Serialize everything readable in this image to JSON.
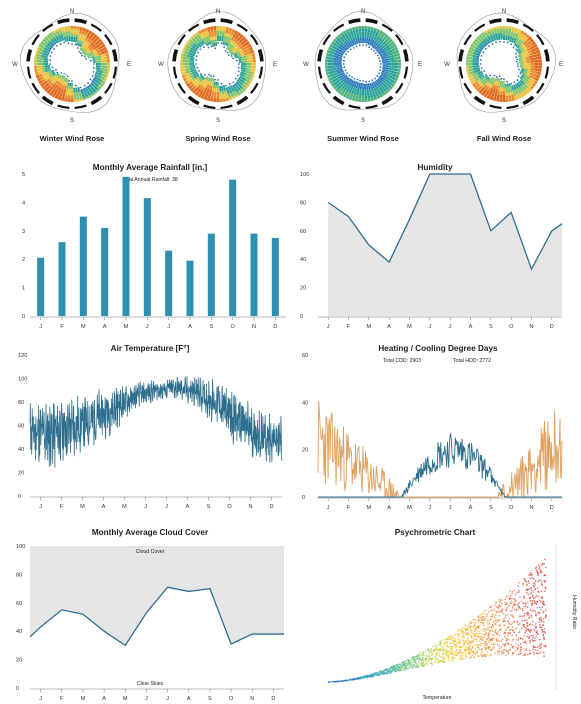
{
  "roses": [
    {
      "label": "Winter Wind Rose",
      "dirs": {
        "n": "N",
        "e": "E",
        "s": "S",
        "w": "W"
      },
      "profile": [
        0.55,
        0.7,
        0.85,
        0.9,
        0.8,
        0.6,
        0.45,
        0.4,
        0.35,
        0.3,
        0.3,
        0.45,
        0.7,
        0.9,
        0.95,
        0.85,
        0.7,
        0.55,
        0.45,
        0.4,
        0.38,
        0.36,
        0.4,
        0.5
      ],
      "dominant": "warm"
    },
    {
      "label": "Spring Wind Rose",
      "dirs": {
        "n": "N",
        "e": "E",
        "s": "S",
        "w": "W"
      },
      "profile": [
        0.5,
        0.65,
        0.8,
        0.85,
        0.75,
        0.6,
        0.5,
        0.45,
        0.4,
        0.35,
        0.4,
        0.55,
        0.75,
        0.9,
        0.85,
        0.7,
        0.55,
        0.5,
        0.45,
        0.42,
        0.4,
        0.45,
        0.6,
        0.75
      ],
      "dominant": "warm"
    },
    {
      "label": "Summer Wind Rose",
      "dirs": {
        "n": "N",
        "e": "E",
        "s": "S",
        "w": "W"
      },
      "profile": [
        0.6,
        0.65,
        0.7,
        0.72,
        0.7,
        0.68,
        0.66,
        0.64,
        0.62,
        0.6,
        0.62,
        0.65,
        0.7,
        0.72,
        0.7,
        0.66,
        0.62,
        0.6,
        0.58,
        0.56,
        0.58,
        0.6,
        0.62,
        0.6
      ],
      "dominant": "cool"
    },
    {
      "label": "Fall Wind Rose",
      "dirs": {
        "n": "N",
        "e": "E",
        "s": "S",
        "w": "W"
      },
      "profile": [
        0.45,
        0.5,
        0.6,
        0.75,
        0.85,
        0.9,
        0.85,
        0.75,
        0.6,
        0.5,
        0.5,
        0.65,
        0.8,
        0.9,
        0.8,
        0.65,
        0.5,
        0.42,
        0.38,
        0.36,
        0.36,
        0.38,
        0.4,
        0.42
      ],
      "dominant": "warm"
    }
  ],
  "months": [
    "J",
    "F",
    "M",
    "A",
    "M",
    "J",
    "J",
    "A",
    "S",
    "O",
    "N",
    "D"
  ],
  "rainfall": {
    "title": "Monthly Average Rainfall [in.]",
    "subtitle": "Total Annual Rainfall: 38",
    "chart_data": {
      "type": "bar",
      "categories": [
        "J",
        "F",
        "M",
        "A",
        "M",
        "J",
        "J",
        "A",
        "S",
        "O",
        "N",
        "D"
      ],
      "values": [
        2.05,
        2.6,
        3.5,
        3.1,
        4.9,
        4.15,
        2.3,
        1.95,
        2.9,
        4.8,
        2.9,
        2.75
      ],
      "ylim": [
        0,
        5
      ],
      "yticks": [
        "0",
        "1",
        "2",
        "3",
        "4",
        "5"
      ]
    }
  },
  "humidity": {
    "title": "Humidity",
    "chart_data": {
      "type": "area",
      "categories": [
        "J",
        "F",
        "M",
        "A",
        "M",
        "J",
        "J",
        "A",
        "S",
        "O",
        "N",
        "D"
      ],
      "x": [
        0,
        0.5,
        1,
        2,
        3,
        4,
        5,
        6,
        7,
        8,
        9,
        10,
        11,
        11.5
      ],
      "values": [
        80,
        75,
        70,
        50,
        38,
        68,
        100,
        100,
        100,
        60,
        73,
        33,
        60,
        65
      ],
      "ylim": [
        0,
        100
      ],
      "yticks": [
        "0",
        "20",
        "40",
        "60",
        "80",
        "100"
      ]
    }
  },
  "air_temp": {
    "title": "Air Temperature [F°]",
    "chart_data": {
      "type": "line",
      "categories": [
        "J",
        "F",
        "M",
        "A",
        "M",
        "J",
        "J",
        "A",
        "S",
        "O",
        "N",
        "D"
      ],
      "ylim": [
        0,
        120
      ],
      "yticks": [
        "0",
        "20",
        "40",
        "60",
        "80",
        "100",
        "120"
      ],
      "trend": [
        55,
        52,
        58,
        65,
        75,
        85,
        90,
        92,
        88,
        78,
        62,
        50,
        48
      ],
      "amplitude": [
        25,
        28,
        26,
        22,
        18,
        10,
        8,
        9,
        12,
        18,
        22,
        20,
        18
      ]
    }
  },
  "degree_days": {
    "title": "Heating / Cooling Degree Days",
    "total_cdd": "Total CDD: 2903",
    "total_hdd": "Total HDD: 2772",
    "chart_data": {
      "type": "line",
      "categories": [
        "J",
        "F",
        "M",
        "A",
        "M",
        "J",
        "J",
        "A",
        "S",
        "O",
        "N",
        "D"
      ],
      "ylim": [
        0,
        60
      ],
      "yticks": [
        "0",
        "20",
        "40",
        "60"
      ],
      "series": [
        {
          "color": "#e0a060"
        },
        {
          "color": "#2e6f8e"
        }
      ]
    }
  },
  "cloud": {
    "title": "Monthly Average Cloud Cover",
    "top_label": "Cloud Cover",
    "bottom_label": "Clear Skies",
    "chart_data": {
      "type": "area",
      "categories": [
        "J",
        "F",
        "M",
        "A",
        "M",
        "J",
        "J",
        "A",
        "S",
        "O",
        "N",
        "D"
      ],
      "x": [
        -0.5,
        0,
        1,
        2,
        3,
        4,
        5,
        6,
        7,
        8,
        9,
        10,
        11,
        11.5
      ],
      "values": [
        36,
        43,
        55,
        52,
        40,
        30,
        53,
        71,
        68,
        70,
        31,
        38,
        38,
        38
      ],
      "ylim": [
        0,
        100
      ],
      "yticks": [
        "0",
        "20",
        "40",
        "60",
        "80",
        "100"
      ]
    }
  },
  "psychro": {
    "title": "Psychrometric Chart",
    "xlabel": "Temperature",
    "ylabel": "Humidity Ratio",
    "chart_data": {
      "type": "scatter"
    }
  },
  "colors": {
    "bar": "#2f8fb0",
    "line": "#2e6f8e",
    "fill": "#e5e5e5",
    "hdd": "#e0a060"
  }
}
